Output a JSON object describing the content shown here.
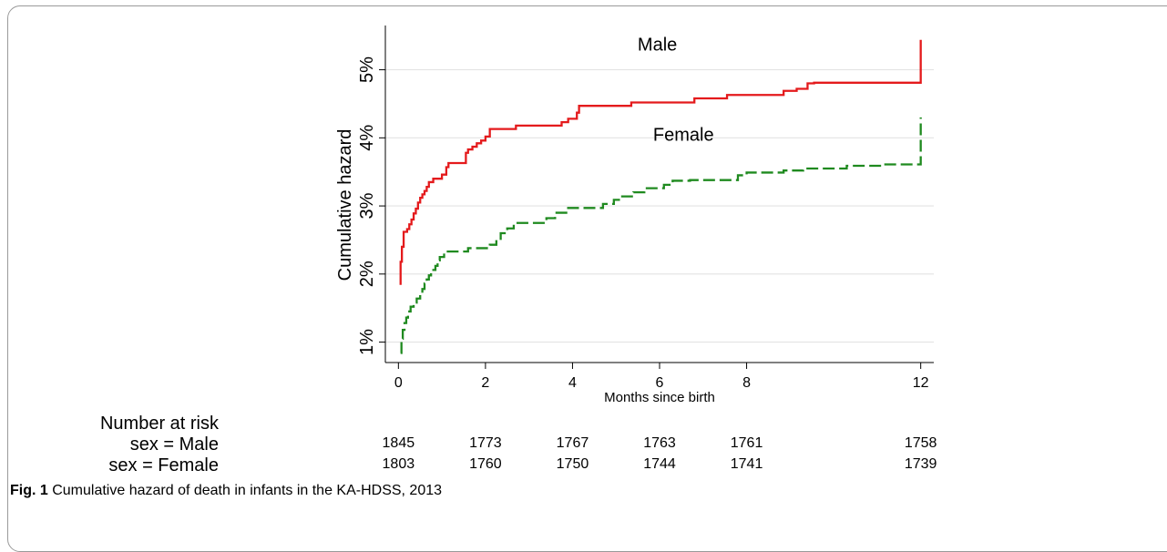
{
  "chart_data": {
    "type": "line",
    "xlabel": "Months since birth",
    "ylabel": "Cumulative hazard",
    "xlim": [
      -0.3,
      12.3
    ],
    "ylim": [
      0.7,
      5.65
    ],
    "xticks": [
      0,
      2,
      4,
      6,
      8,
      12
    ],
    "yticks": [
      1,
      2,
      3,
      4,
      5
    ],
    "ytick_labels": [
      "1%",
      "2%",
      "3%",
      "4%",
      "5%"
    ],
    "grid": "horizontal",
    "series": [
      {
        "name": "Male",
        "color": "#e41a1c",
        "style": "solid-step",
        "points": [
          [
            0.05,
            1.84
          ],
          [
            0.05,
            2.18
          ],
          [
            0.08,
            2.4
          ],
          [
            0.12,
            2.62
          ],
          [
            0.2,
            2.66
          ],
          [
            0.25,
            2.73
          ],
          [
            0.3,
            2.8
          ],
          [
            0.35,
            2.89
          ],
          [
            0.4,
            2.96
          ],
          [
            0.45,
            3.05
          ],
          [
            0.5,
            3.12
          ],
          [
            0.55,
            3.17
          ],
          [
            0.6,
            3.22
          ],
          [
            0.65,
            3.28
          ],
          [
            0.7,
            3.35
          ],
          [
            0.8,
            3.4
          ],
          [
            1.0,
            3.46
          ],
          [
            1.1,
            3.57
          ],
          [
            1.15,
            3.63
          ],
          [
            1.55,
            3.78
          ],
          [
            1.6,
            3.83
          ],
          [
            1.7,
            3.87
          ],
          [
            1.8,
            3.92
          ],
          [
            1.9,
            3.96
          ],
          [
            2.0,
            4.02
          ],
          [
            2.1,
            4.13
          ],
          [
            2.7,
            4.18
          ],
          [
            3.75,
            4.23
          ],
          [
            3.9,
            4.28
          ],
          [
            4.1,
            4.37
          ],
          [
            4.15,
            4.47
          ],
          [
            5.35,
            4.52
          ],
          [
            6.8,
            4.58
          ],
          [
            7.55,
            4.63
          ],
          [
            8.85,
            4.69
          ],
          [
            9.15,
            4.72
          ],
          [
            9.4,
            4.8
          ],
          [
            9.55,
            4.81
          ],
          [
            12.0,
            5.44
          ]
        ]
      },
      {
        "name": "Female",
        "color": "#1f8a1f",
        "style": "dashed-step",
        "points": [
          [
            0.05,
            0.84
          ],
          [
            0.07,
            1.05
          ],
          [
            0.1,
            1.18
          ],
          [
            0.14,
            1.28
          ],
          [
            0.18,
            1.36
          ],
          [
            0.22,
            1.45
          ],
          [
            0.28,
            1.52
          ],
          [
            0.35,
            1.58
          ],
          [
            0.42,
            1.64
          ],
          [
            0.5,
            1.7
          ],
          [
            0.55,
            1.78
          ],
          [
            0.6,
            1.86
          ],
          [
            0.65,
            1.92
          ],
          [
            0.7,
            1.98
          ],
          [
            0.75,
            2.06
          ],
          [
            0.85,
            2.12
          ],
          [
            0.9,
            2.2
          ],
          [
            0.95,
            2.25
          ],
          [
            1.05,
            2.33
          ],
          [
            1.6,
            2.38
          ],
          [
            2.1,
            2.43
          ],
          [
            2.25,
            2.5
          ],
          [
            2.35,
            2.6
          ],
          [
            2.5,
            2.67
          ],
          [
            2.65,
            2.75
          ],
          [
            3.4,
            2.82
          ],
          [
            3.6,
            2.9
          ],
          [
            3.9,
            2.97
          ],
          [
            4.7,
            3.03
          ],
          [
            4.95,
            3.09
          ],
          [
            5.1,
            3.14
          ],
          [
            5.4,
            3.2
          ],
          [
            5.65,
            3.26
          ],
          [
            6.1,
            3.31
          ],
          [
            6.3,
            3.37
          ],
          [
            6.7,
            3.38
          ],
          [
            7.8,
            3.45
          ],
          [
            8.0,
            3.49
          ],
          [
            8.85,
            3.52
          ],
          [
            9.3,
            3.55
          ],
          [
            10.3,
            3.59
          ],
          [
            11.1,
            3.61
          ],
          [
            12.0,
            4.3
          ]
        ]
      }
    ],
    "annotations": [
      {
        "text": "Male",
        "x": 5.95,
        "y": 5.28
      },
      {
        "text": "Female",
        "x": 6.55,
        "y": 3.96
      }
    ]
  },
  "risk_table": {
    "header": "Number at risk",
    "times": [
      0,
      2,
      4,
      6,
      8,
      12
    ],
    "rows": [
      {
        "label": "sex = Male",
        "values": [
          "1845",
          "1773",
          "1767",
          "1763",
          "1761",
          "1758"
        ]
      },
      {
        "label": "sex = Female",
        "values": [
          "1803",
          "1760",
          "1750",
          "1744",
          "1741",
          "1739"
        ]
      }
    ]
  },
  "caption": {
    "fig_label": "Fig. 1",
    "text": " Cumulative hazard of death in infants in the KA-HDSS, 2013"
  }
}
